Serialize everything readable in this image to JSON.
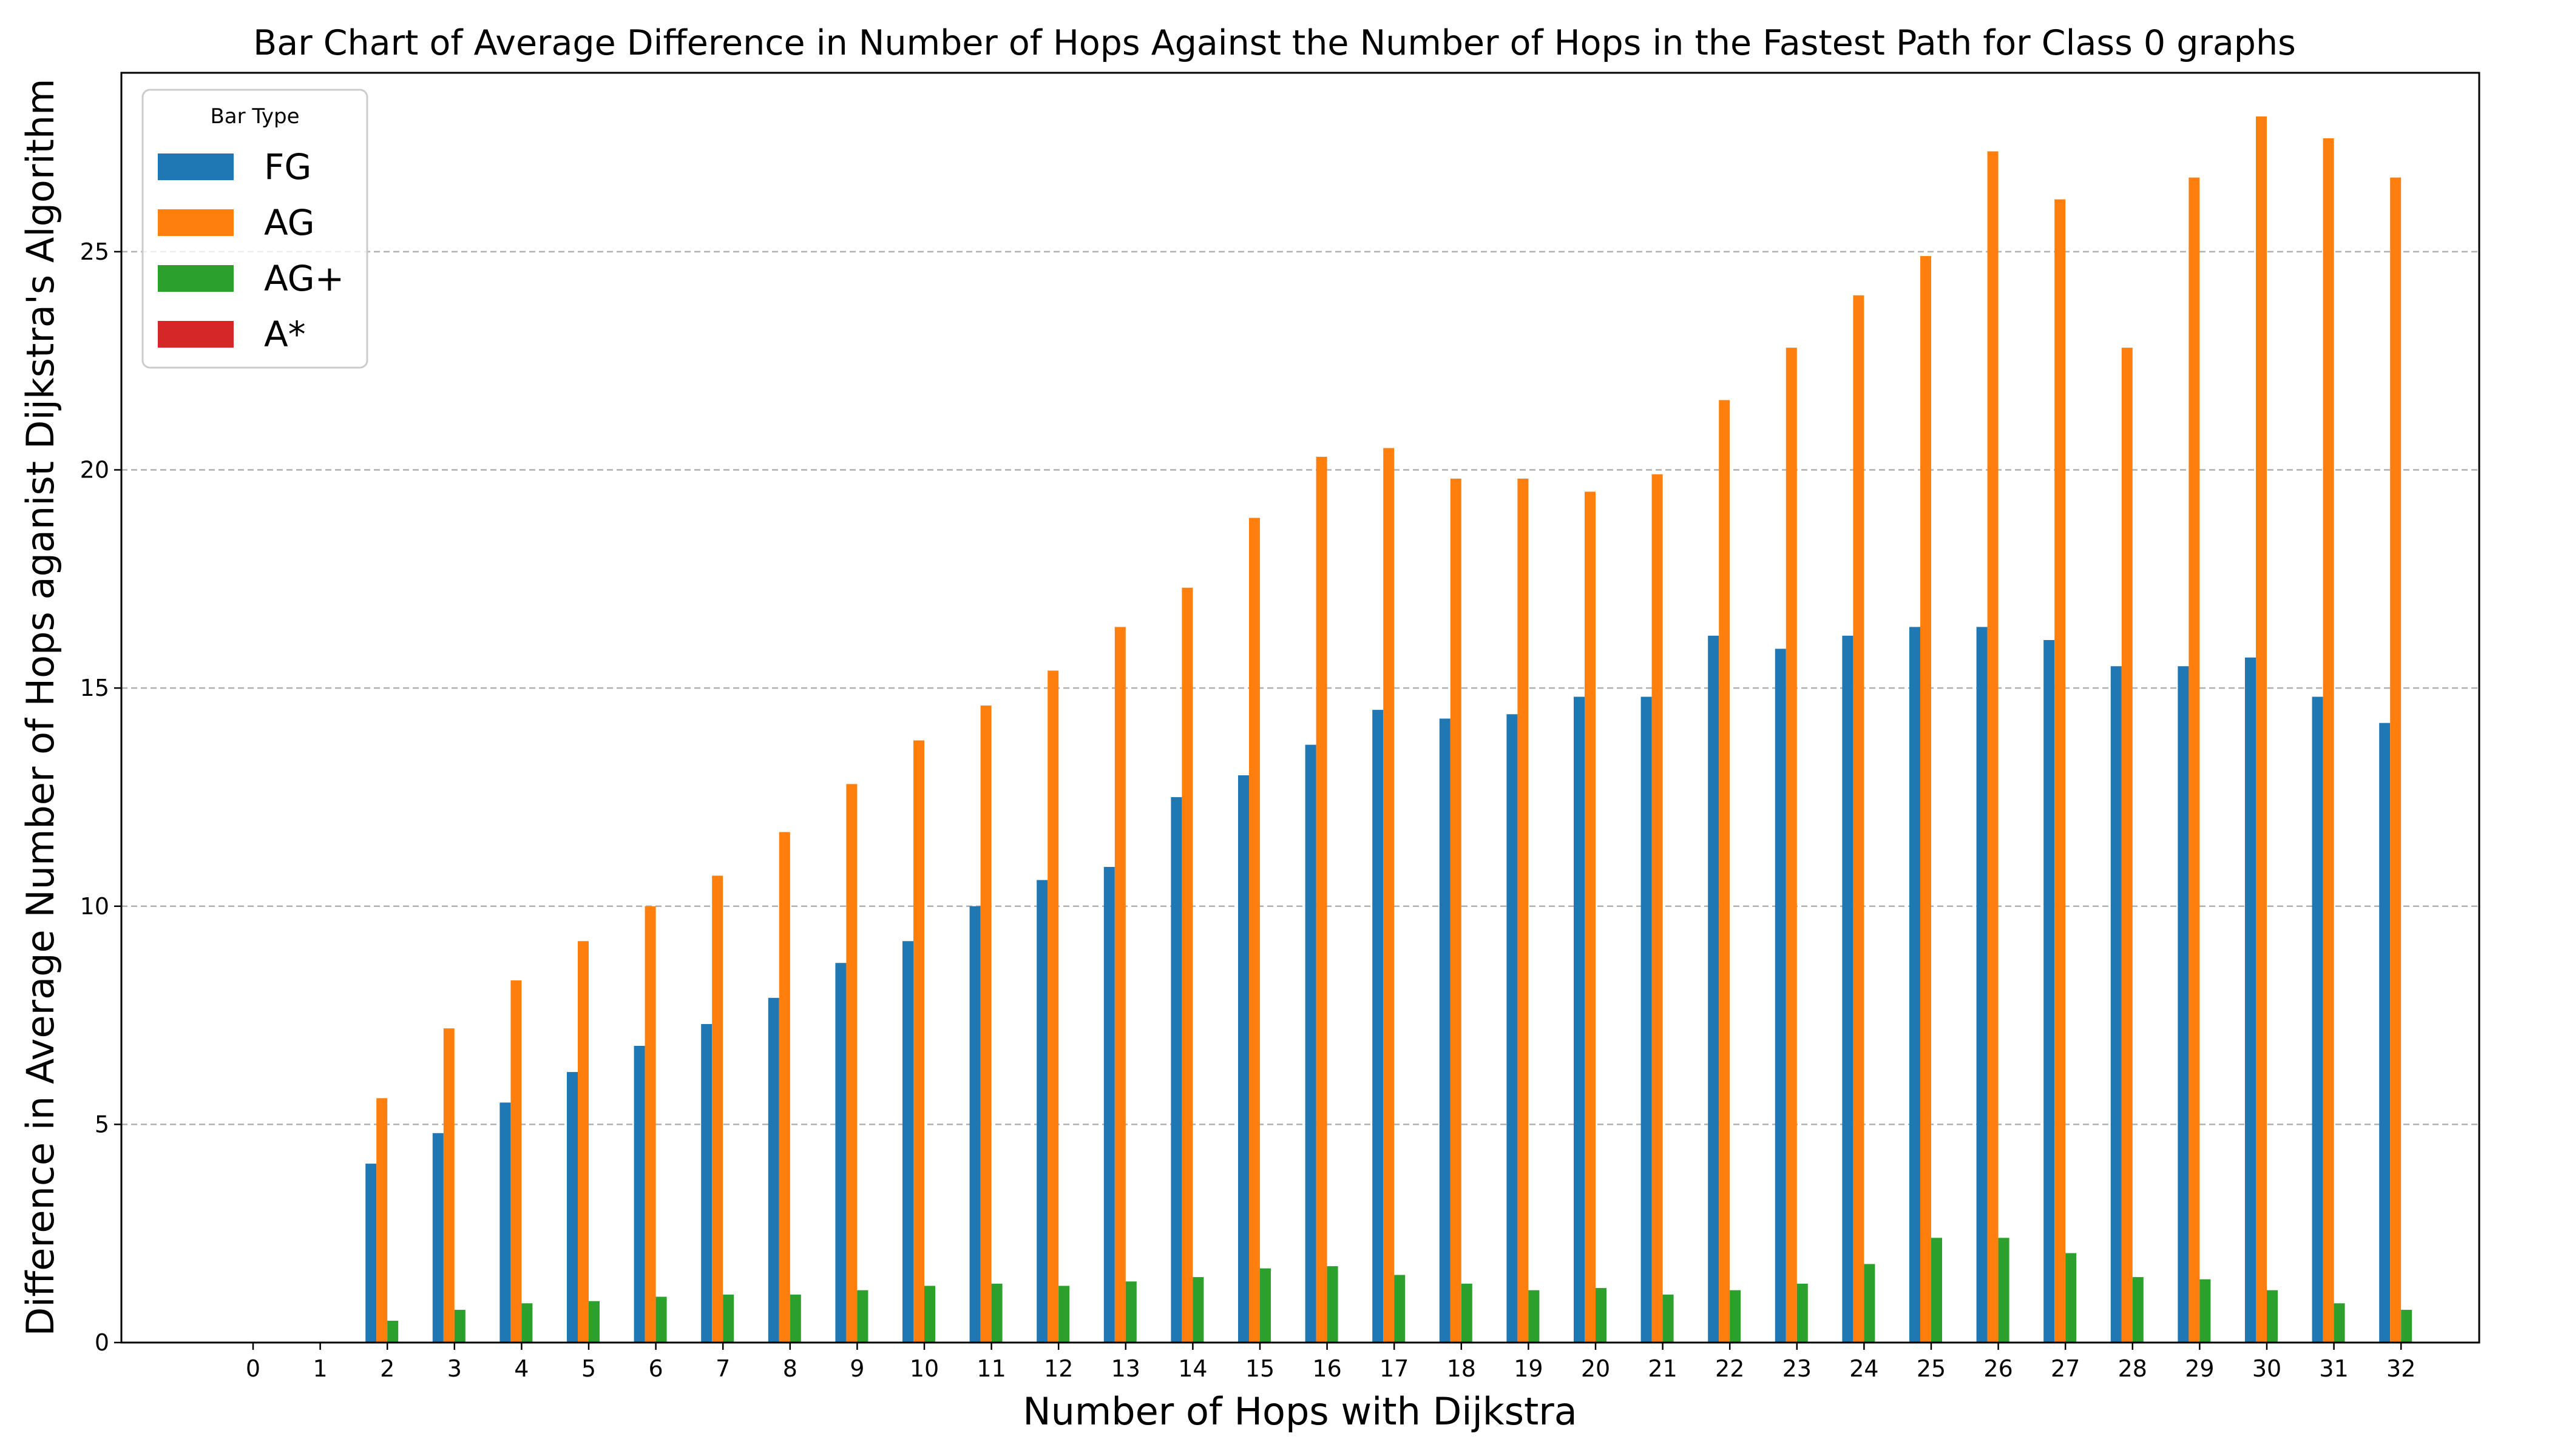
{
  "chart_data": {
    "type": "bar",
    "title": "Bar Chart of Average Difference in Number of Hops Against the Number of Hops in the Fastest Path for Class 0 graphs",
    "xlabel": "Number of Hops with Dijkstra",
    "ylabel": "Difference in Average Number of Hops aganist Dijkstra's Algorithm",
    "categories": [
      "0",
      "1",
      "2",
      "3",
      "4",
      "5",
      "6",
      "7",
      "8",
      "9",
      "10",
      "11",
      "12",
      "13",
      "14",
      "15",
      "16",
      "17",
      "18",
      "19",
      "20",
      "21",
      "22",
      "23",
      "24",
      "25",
      "26",
      "27",
      "28",
      "29",
      "30",
      "31",
      "32"
    ],
    "ylim": [
      0,
      29.1
    ],
    "yticks": [
      0,
      5,
      10,
      15,
      20,
      25
    ],
    "grid": "y-dashed",
    "legend": {
      "title": "Bar Type",
      "placement": "top-left"
    },
    "series": [
      {
        "name": "FG",
        "color": "#1f77b4",
        "values": [
          0,
          0,
          4.1,
          4.8,
          5.5,
          6.2,
          6.8,
          7.3,
          7.9,
          8.7,
          9.2,
          10.0,
          10.6,
          10.9,
          12.5,
          13.0,
          13.7,
          14.5,
          14.3,
          14.4,
          14.8,
          14.8,
          16.2,
          15.9,
          16.2,
          16.4,
          16.4,
          16.1,
          15.5,
          15.5,
          15.7,
          14.8,
          14.2
        ]
      },
      {
        "name": "AG",
        "color": "#ff7f0e",
        "values": [
          0,
          0,
          5.6,
          7.2,
          8.3,
          9.2,
          10.0,
          10.7,
          11.7,
          12.8,
          13.8,
          14.6,
          15.4,
          16.4,
          17.3,
          18.9,
          20.3,
          20.5,
          19.8,
          19.8,
          19.5,
          19.9,
          21.6,
          22.8,
          24.0,
          24.9,
          27.3,
          26.2,
          22.8,
          26.7,
          28.1,
          27.6,
          26.7
        ]
      },
      {
        "name": "AG+",
        "color": "#2ca02c",
        "values": [
          0,
          0,
          0.5,
          0.75,
          0.9,
          0.95,
          1.05,
          1.1,
          1.1,
          1.2,
          1.3,
          1.35,
          1.3,
          1.4,
          1.5,
          1.7,
          1.75,
          1.55,
          1.35,
          1.2,
          1.25,
          1.1,
          1.2,
          1.35,
          1.8,
          2.4,
          2.4,
          2.05,
          1.5,
          1.45,
          1.2,
          0.9,
          0.75
        ]
      },
      {
        "name": "A*",
        "color": "#d62728",
        "values": [
          0,
          0,
          0,
          0,
          0,
          0,
          0,
          0,
          0,
          0,
          0,
          0,
          0,
          0,
          0,
          0,
          0,
          0,
          0,
          0,
          0,
          0,
          0,
          0,
          0,
          0,
          0,
          0,
          0,
          0,
          0,
          0,
          0
        ]
      }
    ]
  }
}
